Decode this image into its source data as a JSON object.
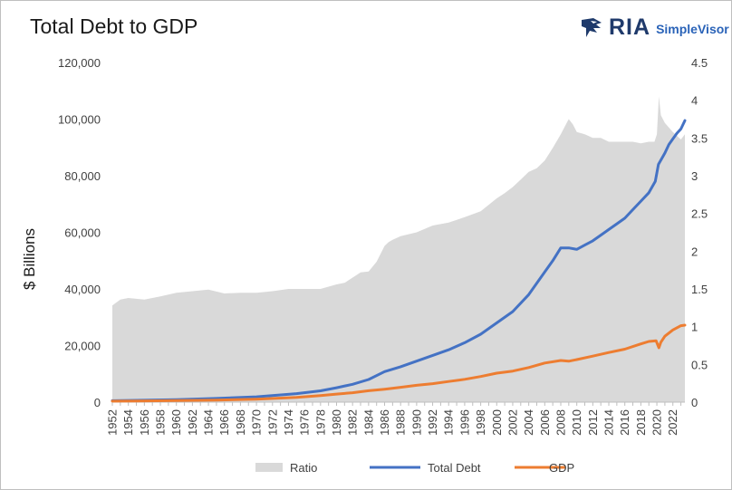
{
  "brand": {
    "name": "RIA",
    "product": "SimpleVisor",
    "color_primary": "#1f3a6b",
    "color_accent": "#2a63b8"
  },
  "chart_data": {
    "type": "area",
    "title": "Total Debt to GDP",
    "xlabel": "",
    "ylabel": "$ Billions",
    "ylim": [
      0,
      120000
    ],
    "y2lim": [
      0,
      4.5
    ],
    "yticks": [
      "0",
      "20,000",
      "40,000",
      "60,000",
      "80,000",
      "100,000",
      "120,000"
    ],
    "y2ticks": [
      "0",
      "0.5",
      "1",
      "1.5",
      "2",
      "2.5",
      "3",
      "3.5",
      "4",
      "4.5"
    ],
    "xticks": [
      "1952",
      "1954",
      "1956",
      "1958",
      "1960",
      "1962",
      "1964",
      "1966",
      "1968",
      "1970",
      "1972",
      "1974",
      "1976",
      "1978",
      "1980",
      "1982",
      "1984",
      "1986",
      "1988",
      "1990",
      "1992",
      "1994",
      "1996",
      "1998",
      "2000",
      "2002",
      "2004",
      "2006",
      "2008",
      "2010",
      "2012",
      "2014",
      "2016",
      "2018",
      "2020",
      "2022"
    ],
    "xlim": [
      1952,
      2023.5
    ],
    "legend_position": "bottom",
    "series": [
      {
        "name": "Ratio",
        "axis": "right",
        "kind": "area",
        "color": "#d9d9d9",
        "x": [
          1952,
          1952.5,
          1953,
          1954,
          1956,
          1958,
          1960,
          1962,
          1964,
          1966,
          1968,
          1970,
          1972,
          1974,
          1976,
          1978,
          1980,
          1981,
          1982,
          1983,
          1984,
          1985,
          1986,
          1986.5,
          1987,
          1988,
          1990,
          1992,
          1994,
          1996,
          1998,
          2000,
          2001,
          2002,
          2003,
          2004,
          2005,
          2006,
          2007,
          2008,
          2008.5,
          2009,
          2009.5,
          2010,
          2011,
          2012,
          2013,
          2014,
          2015,
          2016,
          2017,
          2018,
          2019,
          2019.7,
          2020,
          2020.25,
          2020.5,
          2021,
          2022,
          2023,
          2023.5
        ],
        "values": [
          1.28,
          1.32,
          1.36,
          1.38,
          1.36,
          1.4,
          1.45,
          1.47,
          1.49,
          1.44,
          1.45,
          1.45,
          1.47,
          1.5,
          1.5,
          1.5,
          1.56,
          1.58,
          1.65,
          1.72,
          1.73,
          1.86,
          2.07,
          2.12,
          2.15,
          2.2,
          2.25,
          2.34,
          2.38,
          2.45,
          2.53,
          2.7,
          2.77,
          2.85,
          2.95,
          3.05,
          3.1,
          3.2,
          3.37,
          3.55,
          3.65,
          3.75,
          3.68,
          3.58,
          3.55,
          3.5,
          3.5,
          3.45,
          3.45,
          3.45,
          3.45,
          3.43,
          3.45,
          3.45,
          3.55,
          4.05,
          3.8,
          3.7,
          3.58,
          3.48,
          3.55
        ]
      },
      {
        "name": "Total Debt",
        "axis": "left",
        "kind": "line",
        "color": "#4472c4",
        "x": [
          1952,
          1955,
          1960,
          1965,
          1970,
          1975,
          1978,
          1980,
          1982,
          1984,
          1986,
          1988,
          1990,
          1992,
          1994,
          1996,
          1998,
          2000,
          2002,
          2004,
          2006,
          2007,
          2008,
          2009,
          2010,
          2011,
          2012,
          2013,
          2014,
          2015,
          2016,
          2017,
          2018,
          2019,
          2019.8,
          2020.2,
          2020.5,
          2021,
          2021.5,
          2022,
          2022.5,
          2023,
          2023.5
        ],
        "values": [
          500,
          650,
          900,
          1300,
          1900,
          3000,
          4000,
          5100,
          6300,
          8000,
          10800,
          12500,
          14500,
          16500,
          18500,
          21000,
          24000,
          28000,
          32000,
          38000,
          46000,
          50000,
          54500,
          54500,
          54000,
          55500,
          57000,
          59000,
          61000,
          63000,
          65000,
          68000,
          71000,
          74000,
          78000,
          84000,
          85500,
          88000,
          91000,
          93000,
          95000,
          96500,
          99500
        ]
      },
      {
        "name": "GDP",
        "axis": "left",
        "kind": "line",
        "color": "#ed7d31",
        "x": [
          1952,
          1955,
          1960,
          1965,
          1970,
          1975,
          1978,
          1980,
          1982,
          1984,
          1986,
          1988,
          1990,
          1992,
          1994,
          1996,
          1998,
          2000,
          2002,
          2004,
          2006,
          2008,
          2009,
          2010,
          2012,
          2014,
          2016,
          2018,
          2019,
          2019.9,
          2020.25,
          2020.5,
          2021,
          2022,
          2023,
          2023.5
        ],
        "values": [
          360,
          420,
          540,
          720,
          1070,
          1690,
          2350,
          2850,
          3340,
          4040,
          4580,
          5240,
          5960,
          6520,
          7310,
          8070,
          9060,
          10250,
          10980,
          12210,
          13810,
          14710,
          14450,
          15050,
          16250,
          17550,
          18710,
          20580,
          21430,
          21700,
          19200,
          21200,
          23300,
          25500,
          27000,
          27200
        ]
      }
    ]
  }
}
